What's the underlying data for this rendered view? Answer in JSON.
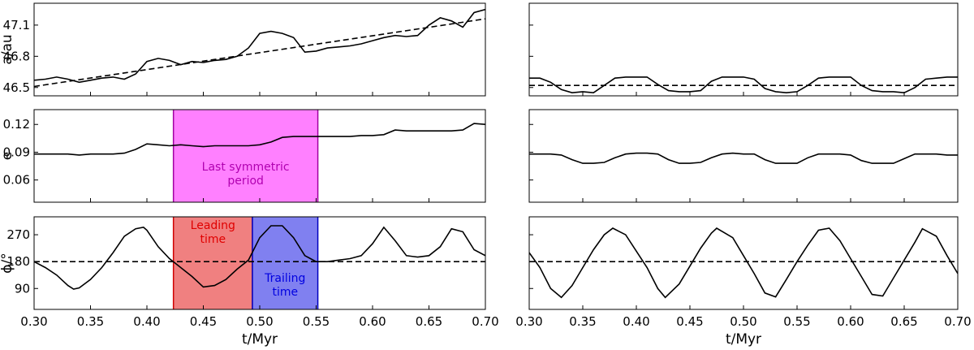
{
  "chart_data": [
    {
      "type": "line",
      "panel": "left-top",
      "ylabel": "a/au",
      "xlim": [
        0.3,
        0.7
      ],
      "ylim": [
        46.42,
        47.31
      ],
      "yticks": [
        "46.5",
        "46.8",
        "47.1"
      ],
      "series": [
        {
          "style": "solid",
          "x": [
            0.3,
            0.31,
            0.32,
            0.33,
            0.34,
            0.35,
            0.36,
            0.37,
            0.38,
            0.39,
            0.4,
            0.41,
            0.42,
            0.43,
            0.44,
            0.45,
            0.46,
            0.47,
            0.48,
            0.49,
            0.5,
            0.51,
            0.52,
            0.53,
            0.54,
            0.55,
            0.56,
            0.57,
            0.58,
            0.59,
            0.6,
            0.61,
            0.62,
            0.63,
            0.64,
            0.65,
            0.66,
            0.67,
            0.68,
            0.69,
            0.7
          ],
          "y": [
            46.57,
            46.58,
            46.6,
            46.58,
            46.55,
            46.57,
            46.59,
            46.6,
            46.58,
            46.63,
            46.75,
            46.78,
            46.76,
            46.72,
            46.75,
            46.74,
            46.76,
            46.77,
            46.8,
            46.88,
            47.02,
            47.04,
            47.02,
            46.98,
            46.84,
            46.85,
            46.88,
            46.89,
            46.9,
            46.92,
            46.95,
            46.98,
            47.0,
            46.99,
            47.0,
            47.1,
            47.17,
            47.14,
            47.08,
            47.22,
            47.25
          ]
        },
        {
          "style": "dashed",
          "x": [
            0.3,
            0.7
          ],
          "y": [
            46.51,
            47.16
          ]
        }
      ]
    },
    {
      "type": "line",
      "panel": "left-middle",
      "ylabel": "e",
      "xlim": [
        0.3,
        0.7
      ],
      "ylim": [
        0.036,
        0.136
      ],
      "yticks": [
        "0.06",
        "0.09",
        "0.12"
      ],
      "series": [
        {
          "style": "solid",
          "x": [
            0.3,
            0.31,
            0.32,
            0.33,
            0.34,
            0.35,
            0.36,
            0.37,
            0.38,
            0.39,
            0.4,
            0.41,
            0.42,
            0.43,
            0.44,
            0.45,
            0.46,
            0.47,
            0.48,
            0.49,
            0.5,
            0.51,
            0.52,
            0.53,
            0.54,
            0.55,
            0.56,
            0.57,
            0.58,
            0.59,
            0.6,
            0.61,
            0.62,
            0.63,
            0.64,
            0.65,
            0.66,
            0.67,
            0.68,
            0.69,
            0.7
          ],
          "y": [
            0.088,
            0.088,
            0.088,
            0.088,
            0.087,
            0.088,
            0.088,
            0.088,
            0.089,
            0.093,
            0.099,
            0.098,
            0.097,
            0.098,
            0.097,
            0.096,
            0.097,
            0.097,
            0.097,
            0.097,
            0.098,
            0.101,
            0.106,
            0.107,
            0.107,
            0.107,
            0.107,
            0.107,
            0.107,
            0.108,
            0.108,
            0.109,
            0.114,
            0.113,
            0.113,
            0.113,
            0.113,
            0.113,
            0.114,
            0.121,
            0.12
          ]
        }
      ],
      "annotations": [
        {
          "text": [
            "Last symmetric",
            "period"
          ],
          "xrange": [
            0.4235,
            0.5515
          ],
          "color": "#ff80ff"
        }
      ]
    },
    {
      "type": "line",
      "panel": "left-bottom",
      "ylabel": "ϕ/°",
      "xlabel": "t/Myr",
      "xlim": [
        0.3,
        0.7
      ],
      "ylim": [
        20,
        330
      ],
      "yticks": [
        "90",
        "180",
        "270"
      ],
      "xticks": [
        "0.30",
        "0.35",
        "0.40",
        "0.45",
        "0.50",
        "0.55",
        "0.60",
        "0.65",
        "0.70"
      ],
      "series": [
        {
          "style": "solid",
          "x": [
            0.3,
            0.31,
            0.32,
            0.33,
            0.335,
            0.34,
            0.35,
            0.36,
            0.37,
            0.38,
            0.39,
            0.397,
            0.4,
            0.41,
            0.42,
            0.43,
            0.44,
            0.45,
            0.46,
            0.47,
            0.48,
            0.49,
            0.5,
            0.51,
            0.52,
            0.53,
            0.54,
            0.55,
            0.56,
            0.57,
            0.58,
            0.59,
            0.6,
            0.61,
            0.62,
            0.63,
            0.64,
            0.65,
            0.66,
            0.67,
            0.68,
            0.69,
            0.7
          ],
          "y": [
            180,
            160,
            135,
            100,
            88,
            92,
            120,
            160,
            210,
            265,
            290,
            295,
            285,
            230,
            190,
            160,
            130,
            95,
            100,
            120,
            155,
            185,
            260,
            300,
            300,
            260,
            200,
            180,
            180,
            185,
            190,
            200,
            240,
            295,
            250,
            200,
            195,
            200,
            230,
            290,
            280,
            220,
            200
          ]
        },
        {
          "style": "dashed",
          "x": [
            0.3,
            0.7
          ],
          "y": [
            180,
            180
          ]
        }
      ],
      "annotations": [
        {
          "text": [
            "Leading",
            "time"
          ],
          "xrange": [
            0.4235,
            0.4935
          ],
          "color": "#f08080"
        },
        {
          "text": [
            "Trailing",
            "time"
          ],
          "xrange": [
            0.4935,
            0.5515
          ],
          "color": "#8080f0"
        }
      ]
    },
    {
      "type": "line",
      "panel": "right-top",
      "xlim": [
        0.3,
        0.7
      ],
      "ylim": [
        46.42,
        47.31
      ],
      "series": [
        {
          "style": "solid",
          "x": [
            0.3,
            0.31,
            0.32,
            0.33,
            0.34,
            0.35,
            0.36,
            0.37,
            0.38,
            0.39,
            0.4,
            0.41,
            0.42,
            0.43,
            0.44,
            0.45,
            0.46,
            0.47,
            0.48,
            0.49,
            0.5,
            0.51,
            0.52,
            0.53,
            0.54,
            0.55,
            0.56,
            0.57,
            0.58,
            0.59,
            0.6,
            0.61,
            0.62,
            0.63,
            0.64,
            0.65,
            0.66,
            0.67,
            0.68,
            0.69,
            0.7
          ],
          "y": [
            46.59,
            46.59,
            46.55,
            46.48,
            46.45,
            46.46,
            46.45,
            46.52,
            46.59,
            46.6,
            46.6,
            46.6,
            46.53,
            46.47,
            46.46,
            46.46,
            46.47,
            46.56,
            46.6,
            46.6,
            46.6,
            46.58,
            46.49,
            46.46,
            46.45,
            46.46,
            46.52,
            46.59,
            46.6,
            46.6,
            46.6,
            46.52,
            46.47,
            46.46,
            46.46,
            46.45,
            46.5,
            46.58,
            46.59,
            46.6,
            46.6
          ]
        },
        {
          "style": "dashed",
          "x": [
            0.3,
            0.7
          ],
          "y": [
            46.52,
            46.52
          ]
        }
      ]
    },
    {
      "type": "line",
      "panel": "right-middle",
      "xlim": [
        0.3,
        0.7
      ],
      "ylim": [
        0.036,
        0.136
      ],
      "series": [
        {
          "style": "solid",
          "x": [
            0.3,
            0.31,
            0.32,
            0.33,
            0.34,
            0.35,
            0.36,
            0.37,
            0.38,
            0.39,
            0.4,
            0.41,
            0.42,
            0.43,
            0.44,
            0.45,
            0.46,
            0.47,
            0.48,
            0.49,
            0.5,
            0.51,
            0.52,
            0.53,
            0.54,
            0.55,
            0.56,
            0.57,
            0.58,
            0.59,
            0.6,
            0.61,
            0.62,
            0.63,
            0.64,
            0.65,
            0.66,
            0.67,
            0.68,
            0.69,
            0.7
          ],
          "y": [
            0.088,
            0.088,
            0.088,
            0.087,
            0.082,
            0.078,
            0.078,
            0.079,
            0.084,
            0.088,
            0.089,
            0.089,
            0.088,
            0.082,
            0.078,
            0.078,
            0.079,
            0.084,
            0.088,
            0.089,
            0.088,
            0.088,
            0.082,
            0.078,
            0.078,
            0.078,
            0.084,
            0.088,
            0.088,
            0.088,
            0.087,
            0.081,
            0.078,
            0.078,
            0.078,
            0.083,
            0.088,
            0.088,
            0.088,
            0.087,
            0.087
          ]
        }
      ]
    },
    {
      "type": "line",
      "panel": "right-bottom",
      "xlabel": "t/Myr",
      "xlim": [
        0.3,
        0.7
      ],
      "ylim": [
        20,
        330
      ],
      "xticks": [
        "0.30",
        "0.35",
        "0.40",
        "0.45",
        "0.50",
        "0.55",
        "0.60",
        "0.65",
        "0.70"
      ],
      "series": [
        {
          "style": "solid",
          "x": [
            0.3,
            0.31,
            0.32,
            0.33,
            0.34,
            0.35,
            0.36,
            0.37,
            0.378,
            0.39,
            0.4,
            0.41,
            0.42,
            0.427,
            0.44,
            0.45,
            0.46,
            0.47,
            0.475,
            0.49,
            0.5,
            0.51,
            0.52,
            0.53,
            0.54,
            0.55,
            0.56,
            0.57,
            0.58,
            0.59,
            0.6,
            0.61,
            0.62,
            0.63,
            0.64,
            0.65,
            0.66,
            0.667,
            0.68,
            0.69,
            0.7
          ],
          "y": [
            210,
            160,
            90,
            60,
            100,
            160,
            220,
            270,
            292,
            270,
            215,
            160,
            90,
            60,
            105,
            165,
            225,
            275,
            292,
            260,
            200,
            140,
            75,
            62,
            120,
            180,
            235,
            285,
            292,
            250,
            190,
            130,
            70,
            65,
            125,
            185,
            245,
            290,
            265,
            200,
            140
          ]
        },
        {
          "style": "dashed",
          "x": [
            0.3,
            0.7
          ],
          "y": [
            180,
            180
          ]
        }
      ]
    }
  ]
}
